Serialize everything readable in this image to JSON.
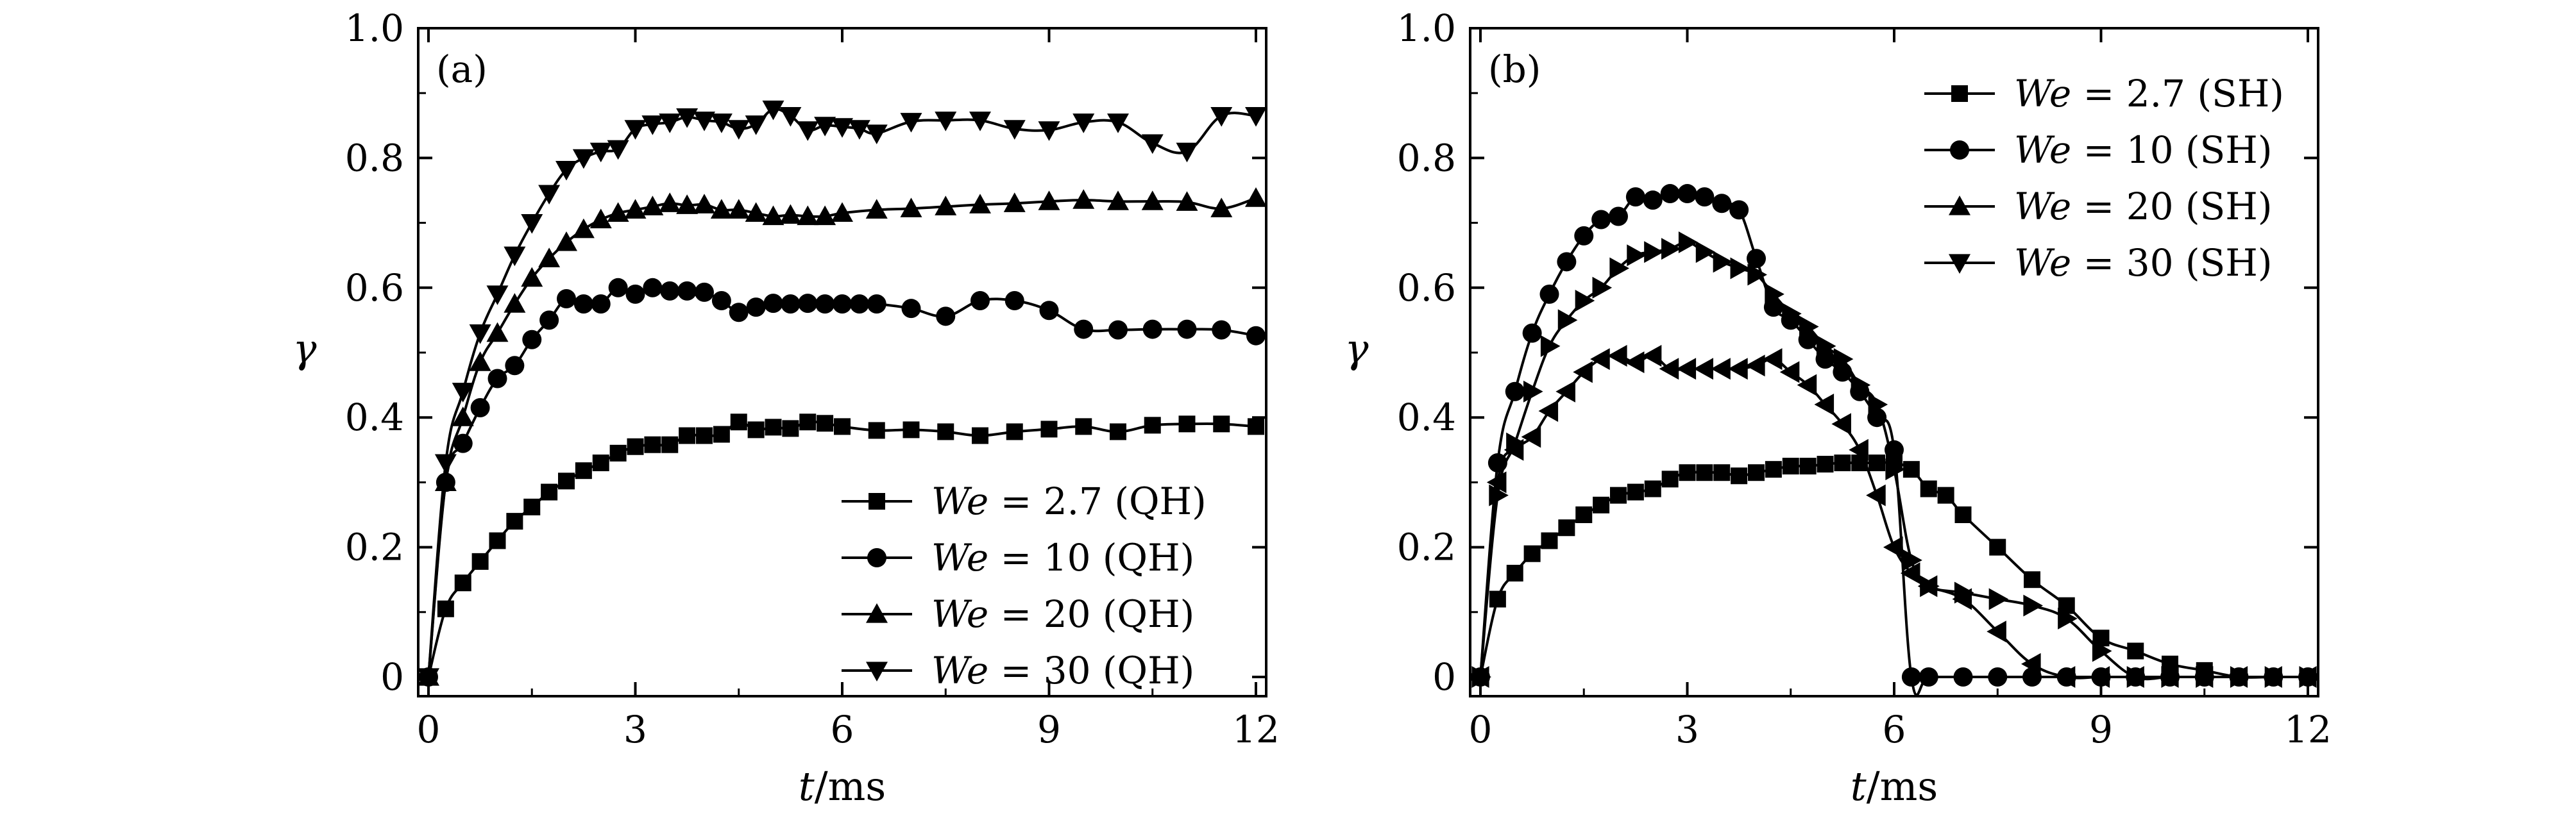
{
  "chart_data": [
    {
      "type": "line",
      "panel_label": "(a)",
      "xlabel_var": "t",
      "xlabel_unit": "/ms",
      "ylabel": "γ",
      "xlim": [
        0,
        12
      ],
      "ylim": [
        0,
        1.0
      ],
      "xticks": [
        0,
        3,
        6,
        9,
        12
      ],
      "xtick_labels": [
        "0",
        "3",
        "6",
        "9",
        "12"
      ],
      "yticks": [
        0,
        0.2,
        0.4,
        0.6,
        0.8,
        1.0
      ],
      "ytick_labels": [
        "0",
        "0.2",
        "0.4",
        "0.6",
        "0.8",
        "1.0"
      ],
      "legend_position": "bottom-right",
      "series": [
        {
          "name": "We = 2.7 (QH)",
          "legend_var": "We",
          "legend_rest": " = 2.7 (QH)",
          "marker": "square",
          "x": [
            0,
            0.25,
            0.5,
            0.75,
            1.0,
            1.25,
            1.5,
            1.75,
            2.0,
            2.25,
            2.5,
            2.75,
            3.0,
            3.25,
            3.5,
            3.75,
            4.0,
            4.25,
            4.5,
            4.75,
            5.0,
            5.25,
            5.5,
            5.75,
            6.0,
            6.5,
            7.0,
            7.5,
            8.0,
            8.5,
            9.0,
            9.5,
            10.0,
            10.5,
            11.0,
            11.5,
            12.0
          ],
          "y": [
            0,
            0.105,
            0.145,
            0.178,
            0.21,
            0.24,
            0.262,
            0.285,
            0.302,
            0.318,
            0.33,
            0.345,
            0.355,
            0.358,
            0.358,
            0.372,
            0.372,
            0.374,
            0.393,
            0.381,
            0.385,
            0.383,
            0.393,
            0.391,
            0.386,
            0.38,
            0.381,
            0.378,
            0.372,
            0.378,
            0.382,
            0.386,
            0.378,
            0.388,
            0.39,
            0.39,
            0.386
          ]
        },
        {
          "name": "We = 10 (QH)",
          "legend_var": "We",
          "legend_rest": " = 10 (QH)",
          "marker": "circle",
          "x": [
            0,
            0.25,
            0.5,
            0.75,
            1.0,
            1.25,
            1.5,
            1.75,
            2.0,
            2.25,
            2.5,
            2.75,
            3.0,
            3.25,
            3.5,
            3.75,
            4.0,
            4.25,
            4.5,
            4.75,
            5.0,
            5.25,
            5.5,
            5.75,
            6.0,
            6.25,
            6.5,
            7.0,
            7.5,
            8.0,
            8.5,
            9.0,
            9.5,
            10.0,
            10.5,
            11.0,
            11.5,
            12.0
          ],
          "y": [
            0,
            0.3,
            0.36,
            0.415,
            0.46,
            0.48,
            0.52,
            0.55,
            0.583,
            0.575,
            0.575,
            0.6,
            0.59,
            0.6,
            0.595,
            0.595,
            0.593,
            0.58,
            0.562,
            0.57,
            0.576,
            0.575,
            0.576,
            0.575,
            0.575,
            0.575,
            0.575,
            0.568,
            0.556,
            0.58,
            0.58,
            0.565,
            0.536,
            0.535,
            0.536,
            0.536,
            0.535,
            0.526
          ]
        },
        {
          "name": "We = 20 (QH)",
          "legend_var": "We",
          "legend_rest": " = 20 (QH)",
          "marker": "triangle-up",
          "x": [
            0,
            0.25,
            0.5,
            0.75,
            1.0,
            1.25,
            1.5,
            1.75,
            2.0,
            2.25,
            2.5,
            2.75,
            3.0,
            3.25,
            3.5,
            3.75,
            4.0,
            4.25,
            4.5,
            4.75,
            5.0,
            5.25,
            5.5,
            5.75,
            6.0,
            6.5,
            7.0,
            7.5,
            8.0,
            8.5,
            9.0,
            9.5,
            10.0,
            10.5,
            11.0,
            11.5,
            12.0
          ],
          "y": [
            0,
            0.3,
            0.4,
            0.485,
            0.53,
            0.575,
            0.615,
            0.645,
            0.67,
            0.69,
            0.705,
            0.715,
            0.72,
            0.725,
            0.73,
            0.727,
            0.728,
            0.72,
            0.72,
            0.715,
            0.71,
            0.712,
            0.71,
            0.71,
            0.715,
            0.72,
            0.722,
            0.725,
            0.728,
            0.73,
            0.733,
            0.735,
            0.733,
            0.733,
            0.732,
            0.722,
            0.738
          ]
        },
        {
          "name": "We = 30 (QH)",
          "legend_var": "We",
          "legend_rest": " = 30 (QH)",
          "marker": "triangle-down",
          "x": [
            0,
            0.25,
            0.5,
            0.75,
            1.0,
            1.25,
            1.5,
            1.75,
            2.0,
            2.25,
            2.5,
            2.75,
            3.0,
            3.25,
            3.5,
            3.75,
            4.0,
            4.25,
            4.5,
            4.75,
            5.0,
            5.25,
            5.5,
            5.75,
            6.0,
            6.25,
            6.5,
            7.0,
            7.5,
            8.0,
            8.5,
            9.0,
            9.5,
            10.0,
            10.5,
            11.0,
            11.5,
            12.0
          ],
          "y": [
            0,
            0.33,
            0.44,
            0.53,
            0.59,
            0.65,
            0.7,
            0.745,
            0.782,
            0.8,
            0.81,
            0.814,
            0.845,
            0.852,
            0.855,
            0.863,
            0.858,
            0.855,
            0.845,
            0.852,
            0.875,
            0.865,
            0.843,
            0.85,
            0.848,
            0.845,
            0.838,
            0.856,
            0.858,
            0.858,
            0.845,
            0.843,
            0.855,
            0.855,
            0.823,
            0.81,
            0.865,
            0.865
          ]
        }
      ]
    },
    {
      "type": "line",
      "panel_label": "(b)",
      "xlabel_var": "t",
      "xlabel_unit": "/ms",
      "ylabel": "γ",
      "xlim": [
        0,
        12
      ],
      "ylim": [
        0,
        1.0
      ],
      "xticks": [
        0,
        3,
        6,
        9,
        12
      ],
      "xtick_labels": [
        "0",
        "3",
        "6",
        "9",
        "12"
      ],
      "yticks": [
        0,
        0.2,
        0.4,
        0.6,
        0.8,
        1.0
      ],
      "ytick_labels": [
        "0",
        "0.2",
        "0.4",
        "0.6",
        "0.8",
        "1.0"
      ],
      "legend_position": "top-right",
      "series": [
        {
          "name": "We = 2.7 (SH)",
          "legend_var": "We",
          "legend_rest": " = 2.7 (SH)",
          "marker": "square",
          "x": [
            0,
            0.25,
            0.5,
            0.75,
            1.0,
            1.25,
            1.5,
            1.75,
            2.0,
            2.25,
            2.5,
            2.75,
            3.0,
            3.25,
            3.5,
            3.75,
            4.0,
            4.25,
            4.5,
            4.75,
            5.0,
            5.25,
            5.5,
            5.75,
            6.0,
            6.25,
            6.5,
            6.75,
            7.0,
            7.5,
            8.0,
            8.5,
            9.0,
            9.5,
            10.0,
            10.5,
            11.0,
            11.5,
            12.0
          ],
          "y": [
            0,
            0.12,
            0.16,
            0.19,
            0.21,
            0.23,
            0.25,
            0.265,
            0.28,
            0.285,
            0.29,
            0.305,
            0.315,
            0.315,
            0.315,
            0.31,
            0.315,
            0.32,
            0.325,
            0.325,
            0.328,
            0.33,
            0.33,
            0.33,
            0.33,
            0.32,
            0.29,
            0.28,
            0.25,
            0.2,
            0.15,
            0.11,
            0.06,
            0.04,
            0.02,
            0.01,
            0.0,
            0.0,
            0.0
          ]
        },
        {
          "name": "We = 10 (SH)",
          "legend_var": "We",
          "legend_rest": " = 10 (SH)",
          "marker": "circle",
          "x": [
            0,
            0.25,
            0.5,
            0.75,
            1.0,
            1.25,
            1.5,
            1.75,
            2.0,
            2.25,
            2.5,
            2.75,
            3.0,
            3.25,
            3.5,
            3.75,
            4.0,
            4.25,
            4.5,
            4.75,
            5.0,
            5.25,
            5.5,
            5.75,
            6.0,
            6.25,
            6.5,
            7.0,
            7.5,
            8.0,
            8.5,
            9.0,
            9.5,
            10.0,
            10.5,
            11.0,
            11.5,
            12.0
          ],
          "y": [
            0,
            0.33,
            0.44,
            0.53,
            0.59,
            0.64,
            0.68,
            0.705,
            0.71,
            0.74,
            0.735,
            0.745,
            0.745,
            0.74,
            0.73,
            0.72,
            0.645,
            0.57,
            0.55,
            0.52,
            0.49,
            0.47,
            0.44,
            0.4,
            0.35,
            0.0,
            0.0,
            0.0,
            0.0,
            0.0,
            0.0,
            0.0,
            0.0,
            0.0,
            0.0,
            0.0,
            0.0,
            0.0
          ]
        },
        {
          "name": "We = 20 (SH)",
          "legend_var": "We",
          "legend_rest": " = 20 (SH)",
          "marker": "triangle-left",
          "x": [
            0,
            0.25,
            0.5,
            0.75,
            1.0,
            1.25,
            1.5,
            1.75,
            2.0,
            2.25,
            2.5,
            2.75,
            3.0,
            3.25,
            3.5,
            3.75,
            4.0,
            4.25,
            4.5,
            4.75,
            5.0,
            5.25,
            5.5,
            5.75,
            6.0,
            6.25,
            6.5,
            7.0,
            7.5,
            8.0,
            8.5,
            9.0,
            9.5,
            10.0,
            10.5,
            11.0,
            11.5,
            12.0
          ],
          "y": [
            0,
            0.3,
            0.35,
            0.37,
            0.41,
            0.44,
            0.47,
            0.49,
            0.495,
            0.485,
            0.495,
            0.475,
            0.475,
            0.475,
            0.475,
            0.475,
            0.48,
            0.49,
            0.47,
            0.45,
            0.42,
            0.39,
            0.35,
            0.28,
            0.2,
            0.16,
            0.14,
            0.12,
            0.07,
            0.02,
            0.0,
            0.0,
            0.0,
            0.0,
            0.0,
            0.0,
            0.0,
            0.0
          ]
        },
        {
          "name": "We = 30 (SH)",
          "legend_var": "We",
          "legend_rest": " = 30 (SH)",
          "marker": "triangle-right",
          "x": [
            0,
            0.25,
            0.5,
            0.75,
            1.0,
            1.25,
            1.5,
            1.75,
            2.0,
            2.25,
            2.5,
            2.75,
            3.0,
            3.25,
            3.5,
            3.75,
            4.0,
            4.25,
            4.5,
            4.75,
            5.0,
            5.25,
            5.5,
            5.75,
            6.0,
            6.25,
            6.5,
            7.0,
            7.5,
            8.0,
            8.5,
            9.0,
            9.5,
            10.0,
            10.5,
            11.0,
            11.5,
            12.0
          ],
          "y": [
            0,
            0.28,
            0.36,
            0.44,
            0.51,
            0.55,
            0.58,
            0.6,
            0.63,
            0.65,
            0.655,
            0.66,
            0.67,
            0.655,
            0.64,
            0.63,
            0.62,
            0.59,
            0.56,
            0.54,
            0.51,
            0.49,
            0.45,
            0.42,
            0.32,
            0.18,
            0.14,
            0.13,
            0.12,
            0.11,
            0.09,
            0.04,
            0.0,
            0.0,
            0.0,
            0.0,
            0.0,
            0.0
          ]
        }
      ]
    }
  ]
}
